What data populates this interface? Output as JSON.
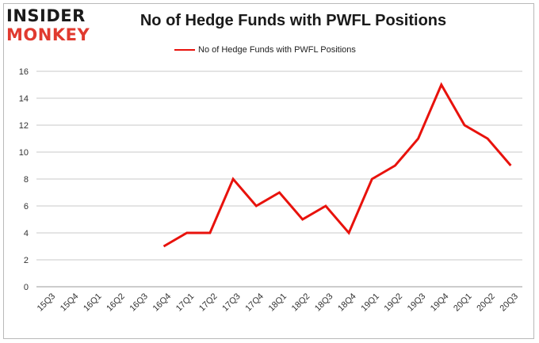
{
  "logo": {
    "top": "INSIDER",
    "bottom": "MONKEY"
  },
  "colors": {
    "line": "#e8120c",
    "grid": "#c8c8c8",
    "axis_text": "#333333",
    "logo_accent": "#e03a2f"
  },
  "chart_data": {
    "type": "line",
    "title": "No of Hedge Funds with PWFL Positions",
    "xlabel": "",
    "ylabel": "",
    "ylim": [
      0,
      16
    ],
    "yticks": [
      0,
      2,
      4,
      6,
      8,
      10,
      12,
      14,
      16
    ],
    "grid": true,
    "legend_position": "top-center",
    "categories": [
      "15Q3",
      "15Q4",
      "16Q1",
      "16Q2",
      "16Q3",
      "16Q4",
      "17Q1",
      "17Q2",
      "17Q3",
      "17Q4",
      "18Q1",
      "18Q2",
      "18Q3",
      "18Q4",
      "19Q1",
      "19Q2",
      "19Q3",
      "19Q4",
      "20Q1",
      "20Q2",
      "20Q3"
    ],
    "series": [
      {
        "name": "No of Hedge Funds with PWFL Positions",
        "values": [
          null,
          null,
          null,
          null,
          null,
          3,
          4,
          4,
          8,
          6,
          7,
          5,
          6,
          4,
          8,
          9,
          11,
          15,
          12,
          11,
          9
        ]
      }
    ]
  }
}
